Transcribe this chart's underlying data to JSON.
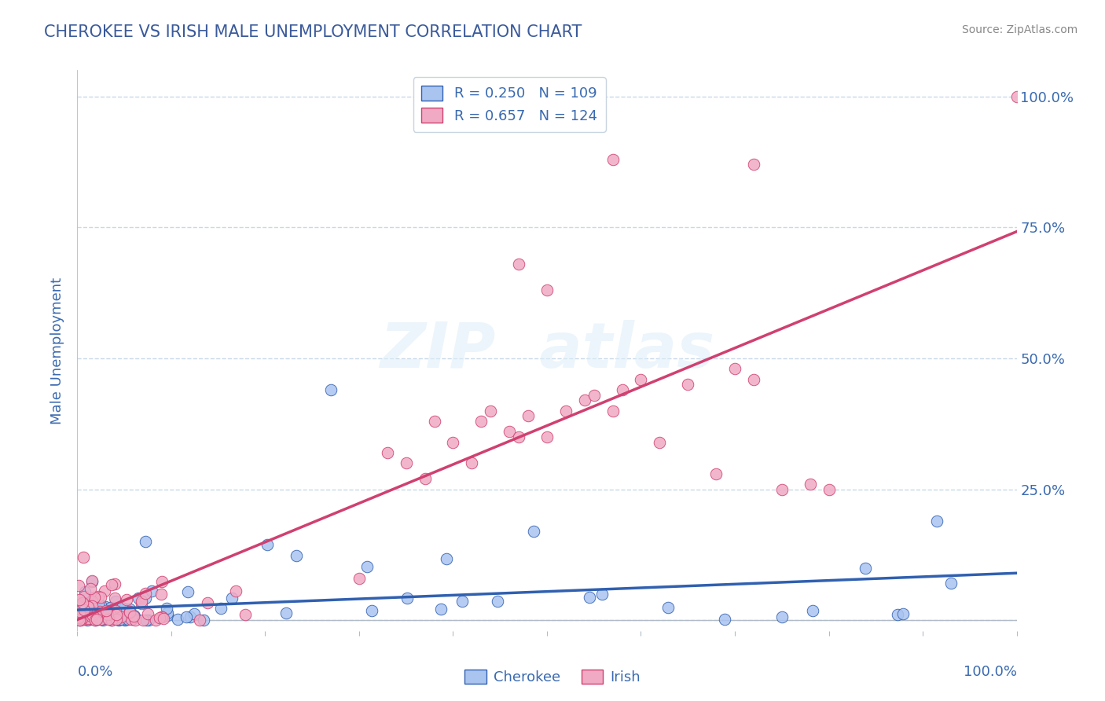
{
  "title": "CHEROKEE VS IRISH MALE UNEMPLOYMENT CORRELATION CHART",
  "source": "Source: ZipAtlas.com",
  "ylabel": "Male Unemployment",
  "cherokee_R": 0.25,
  "cherokee_N": 109,
  "irish_R": 0.657,
  "irish_N": 124,
  "cherokee_color": "#aac4f0",
  "irish_color": "#f0aac4",
  "cherokee_line_color": "#3060b0",
  "irish_line_color": "#d04070",
  "background_color": "#ffffff",
  "grid_color": "#c8d8e8",
  "title_color": "#3a5a9a",
  "tick_label_color": "#3a6ab0",
  "cherokee_line_intercept": 0.01,
  "cherokee_line_slope": 0.048,
  "irish_line_intercept": -0.02,
  "irish_line_slope": 0.68
}
